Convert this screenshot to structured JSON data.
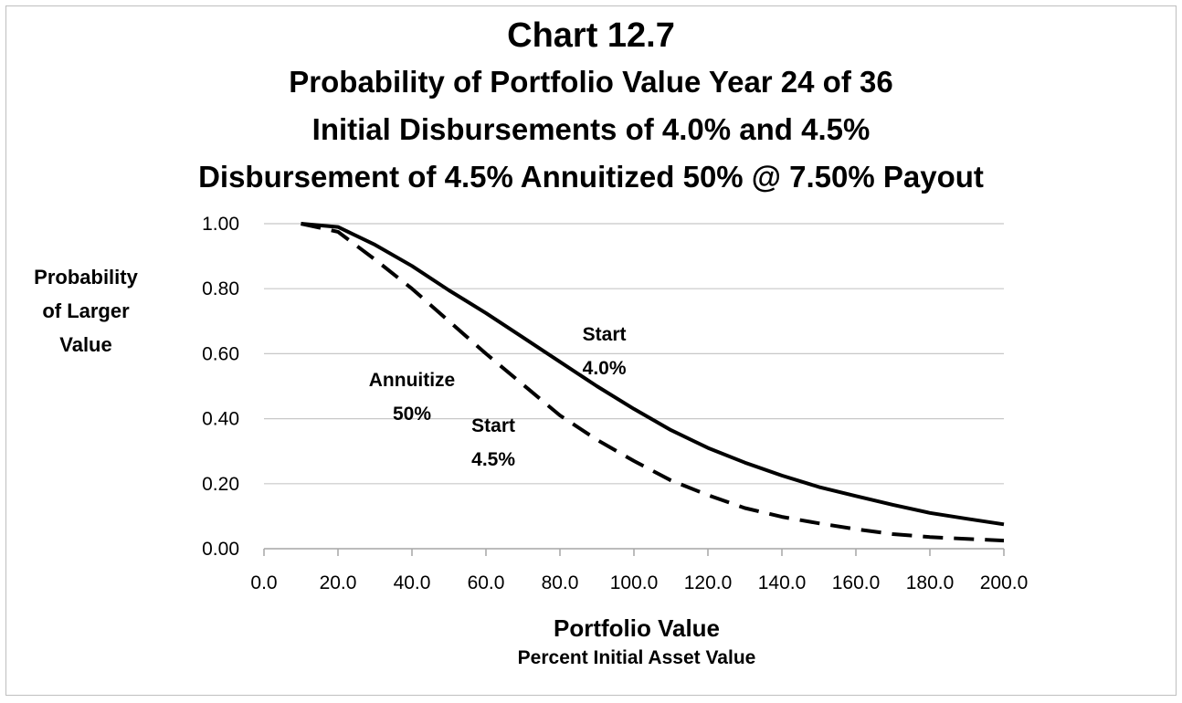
{
  "chart_data": {
    "type": "line",
    "title": "Chart 12.7",
    "subtitle_lines": [
      "Probability of Portfolio Value Year 24 of 36",
      "Initial Disbursements of 4.0% and 4.5%",
      "Disbursement of 4.5% Annuitized 50% @ 7.50% Payout"
    ],
    "ylabel_lines": [
      "Probability",
      "of Larger",
      "Value"
    ],
    "xlabel": "Portfolio Value",
    "xlabel_sub": "Percent Initial Asset Value",
    "xlim": [
      0,
      200
    ],
    "ylim": [
      0,
      1
    ],
    "grid": "horizontal",
    "x_ticks": [
      "0.0",
      "20.0",
      "40.0",
      "60.0",
      "80.0",
      "100.0",
      "120.0",
      "140.0",
      "160.0",
      "180.0",
      "200.0"
    ],
    "y_ticks": [
      "0.00",
      "0.20",
      "0.40",
      "0.60",
      "0.80",
      "1.00"
    ],
    "series": [
      {
        "style": "solid",
        "x": [
          10,
          20,
          30,
          40,
          50,
          60,
          70,
          80,
          90,
          100,
          110,
          120,
          130,
          140,
          150,
          160,
          170,
          180,
          190,
          200
        ],
        "values": [
          1.0,
          0.99,
          0.935,
          0.87,
          0.795,
          0.725,
          0.65,
          0.575,
          0.5,
          0.43,
          0.365,
          0.31,
          0.265,
          0.225,
          0.19,
          0.162,
          0.135,
          0.11,
          0.092,
          0.075
        ]
      },
      {
        "style": "dashed",
        "x": [
          10,
          20,
          30,
          40,
          50,
          60,
          70,
          80,
          90,
          100,
          110,
          120,
          130,
          140,
          150,
          160,
          170,
          180,
          190,
          200
        ],
        "values": [
          1.0,
          0.975,
          0.89,
          0.8,
          0.7,
          0.6,
          0.505,
          0.41,
          0.335,
          0.27,
          0.21,
          0.165,
          0.125,
          0.098,
          0.078,
          0.06,
          0.045,
          0.036,
          0.03,
          0.025
        ]
      }
    ],
    "annotations": [
      {
        "lines": [
          "Start",
          "4.0%"
        ],
        "x": 92,
        "y": 0.64
      },
      {
        "lines": [
          "Annuitize",
          "50%"
        ],
        "x": 40,
        "y": 0.5
      },
      {
        "lines": [
          "Start",
          "4.5%"
        ],
        "x": 62,
        "y": 0.36
      }
    ]
  }
}
